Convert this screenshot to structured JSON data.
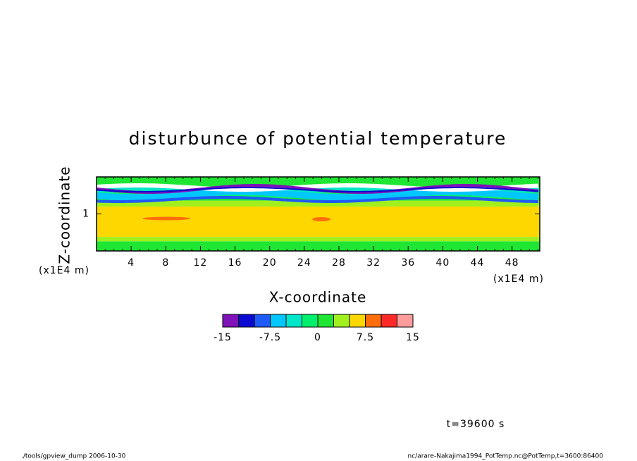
{
  "chart_data": {
    "type": "contour",
    "title": "disturbunce of potential temperature",
    "x_label": "X-coordinate",
    "y_label": "Z-coordinate",
    "x_unit": "(x1E4 m)",
    "y_unit": "(x1E4 m)",
    "xlim": [
      0,
      51.2
    ],
    "xticks": [
      4,
      8,
      12,
      16,
      20,
      24,
      28,
      32,
      36,
      40,
      44,
      48
    ],
    "ylim": [
      0,
      2
    ],
    "yticks": [
      1
    ],
    "colorbar": {
      "levels": [
        -15,
        -12.5,
        -10,
        -7.5,
        -5,
        -2.5,
        0,
        2.5,
        5,
        7.5,
        10,
        12.5,
        15
      ],
      "colors": [
        "#7f12b8",
        "#0a0ad0",
        "#1e5af5",
        "#00c8ff",
        "#00e6c8",
        "#00f06e",
        "#1ee632",
        "#a0f01e",
        "#ffd700",
        "#ff6e0a",
        "#ff2828",
        "#ff9c9c"
      ],
      "ticks": [
        -15,
        -7.5,
        0,
        7.5,
        15
      ]
    },
    "annotation": "t=39600 s",
    "footer_left": "./tools/gpview_dump  2006-10-30",
    "footer_right": "nc/arare-Nakajima1994_PotTemp.nc@PotTemp,t=3600:86400"
  }
}
